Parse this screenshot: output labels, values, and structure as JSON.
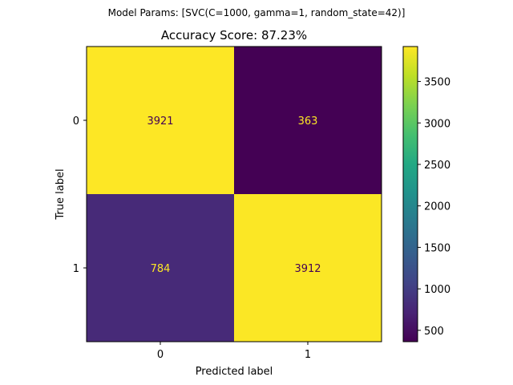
{
  "chart_data": {
    "type": "heatmap",
    "suptitle": "Model Params: [SVC(C=1000, gamma=1, random_state=42)]",
    "title": "Accuracy Score: 87.23%",
    "xlabel": "Predicted label",
    "ylabel": "True label",
    "x_categories": [
      "0",
      "1"
    ],
    "y_categories": [
      "0",
      "1"
    ],
    "matrix": [
      [
        3921,
        363
      ],
      [
        784,
        3912
      ]
    ],
    "cell_labels": [
      [
        "3921",
        "363"
      ],
      [
        "784",
        "3912"
      ]
    ],
    "colormap": "viridis",
    "colorbar": {
      "range": [
        363,
        3921
      ],
      "ticks": [
        500,
        1000,
        1500,
        2000,
        2500,
        3000,
        3500
      ],
      "tick_labels": [
        "500",
        "1000",
        "1500",
        "2000",
        "2500",
        "3000",
        "3500"
      ]
    },
    "colors": {
      "low": "#440154",
      "high": "#fde725",
      "text_on_dark": "#fde725",
      "text_on_light": "#440154"
    }
  }
}
